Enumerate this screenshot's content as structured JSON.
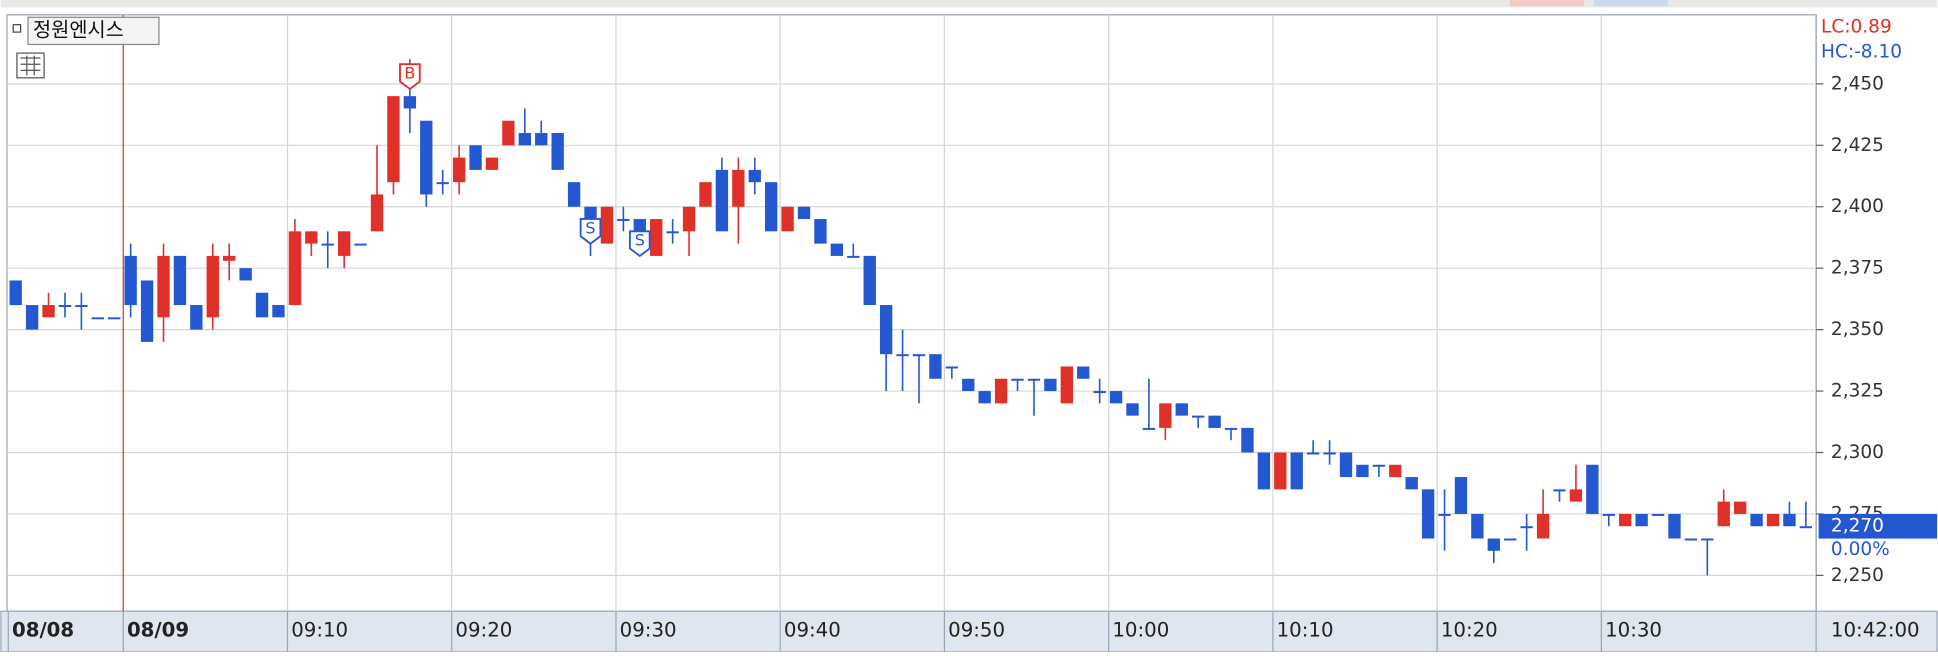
{
  "chart_data": {
    "type": "candlestick",
    "title": "정원엔시스",
    "legend_lc": "LC:0.89",
    "legend_hc": "HC:-8.10",
    "current_price": {
      "value": 2270,
      "label": "2,270"
    },
    "current_change": "0.00%",
    "current_time": "10:42:00",
    "up_color": "#e0302a",
    "down_color": "#2458d0",
    "categories": [
      "08/08",
      null,
      null,
      null,
      null,
      null,
      null,
      "08/09",
      null,
      null,
      null,
      null,
      null,
      null,
      null,
      null,
      null,
      "09:10",
      null,
      null,
      null,
      null,
      null,
      null,
      null,
      null,
      null,
      "09:20",
      null,
      null,
      null,
      null,
      null,
      null,
      null,
      null,
      null,
      "09:30",
      null,
      null,
      null,
      null,
      null,
      null,
      null,
      null,
      null,
      "09:40",
      null,
      null,
      null,
      null,
      null,
      null,
      null,
      null,
      null,
      "09:50",
      null,
      null,
      null,
      null,
      null,
      null,
      null,
      null,
      null,
      "10:00",
      null,
      null,
      null,
      null,
      null,
      null,
      null,
      null,
      null,
      "10:10",
      null,
      null,
      null,
      null,
      null,
      null,
      null,
      null,
      null,
      "10:20",
      null,
      null,
      null,
      null,
      null,
      null,
      null,
      null,
      null,
      "10:30",
      null,
      null,
      null,
      null,
      null,
      null,
      null,
      null,
      null,
      null,
      null,
      null
    ],
    "open": [
      2370,
      2360,
      2355,
      2360,
      2360,
      2355,
      2355,
      2380,
      2370,
      2355,
      2380,
      2360,
      2355,
      2378,
      2375,
      2365,
      2360,
      2360,
      2385,
      2385,
      2380,
      2385,
      2390,
      2410,
      2445,
      2435,
      2410,
      2410,
      2425,
      2415,
      2425,
      2430,
      2430,
      2430,
      2410,
      2400,
      2385,
      2395,
      2395,
      2380,
      2390,
      2390,
      2400,
      2415,
      2400,
      2415,
      2410,
      2390,
      2400,
      2395,
      2385,
      2380,
      2380,
      2360,
      2340,
      2340,
      2340,
      2335,
      2330,
      2325,
      2320,
      2330,
      2330,
      2330,
      2320,
      2335,
      2325,
      2325,
      2320,
      2310,
      2310,
      2320,
      2315,
      2315,
      2310,
      2310,
      2300,
      2285,
      2300,
      2300,
      2300,
      2300,
      2295,
      2295,
      2290,
      2290,
      2285,
      2275,
      2290,
      2275,
      2265,
      2265,
      2270,
      2265,
      2285,
      2280,
      2295,
      2275,
      2270,
      2275,
      2275,
      2275,
      2265,
      2265,
      2270,
      2275,
      2275,
      2270,
      2275,
      2270
    ],
    "high": [
      2370,
      2360,
      2365,
      2365,
      2365,
      2355,
      2355,
      2385,
      2370,
      2385,
      2380,
      2360,
      2385,
      2385,
      2375,
      2365,
      2360,
      2395,
      2390,
      2390,
      2390,
      2385,
      2425,
      2445,
      2460,
      2435,
      2415,
      2425,
      2425,
      2420,
      2435,
      2440,
      2435,
      2430,
      2410,
      2400,
      2400,
      2400,
      2395,
      2395,
      2395,
      2400,
      2410,
      2420,
      2420,
      2420,
      2410,
      2400,
      2400,
      2395,
      2385,
      2385,
      2380,
      2360,
      2350,
      2340,
      2340,
      2335,
      2330,
      2325,
      2330,
      2330,
      2330,
      2330,
      2335,
      2335,
      2330,
      2325,
      2320,
      2330,
      2320,
      2320,
      2315,
      2315,
      2310,
      2310,
      2300,
      2300,
      2300,
      2305,
      2305,
      2300,
      2295,
      2295,
      2295,
      2290,
      2285,
      2285,
      2290,
      2275,
      2265,
      2265,
      2275,
      2285,
      2285,
      2295,
      2295,
      2275,
      2275,
      2275,
      2275,
      2275,
      2265,
      2265,
      2285,
      2280,
      2275,
      2275,
      2280,
      2280
    ],
    "low": [
      2360,
      2350,
      2355,
      2355,
      2350,
      2355,
      2355,
      2355,
      2345,
      2345,
      2360,
      2350,
      2350,
      2370,
      2370,
      2355,
      2355,
      2360,
      2380,
      2375,
      2375,
      2385,
      2390,
      2405,
      2430,
      2400,
      2405,
      2405,
      2415,
      2415,
      2425,
      2425,
      2425,
      2415,
      2400,
      2380,
      2385,
      2390,
      2380,
      2380,
      2385,
      2380,
      2400,
      2390,
      2385,
      2405,
      2390,
      2390,
      2395,
      2385,
      2380,
      2380,
      2360,
      2325,
      2325,
      2320,
      2330,
      2330,
      2325,
      2320,
      2320,
      2325,
      2315,
      2325,
      2320,
      2330,
      2320,
      2320,
      2315,
      2310,
      2305,
      2315,
      2310,
      2310,
      2305,
      2300,
      2285,
      2285,
      2285,
      2300,
      2295,
      2290,
      2290,
      2290,
      2290,
      2285,
      2265,
      2260,
      2275,
      2265,
      2255,
      2265,
      2260,
      2265,
      2280,
      2280,
      2275,
      2270,
      2270,
      2270,
      2275,
      2265,
      2265,
      2250,
      2270,
      2275,
      2270,
      2270,
      2270,
      2270
    ],
    "close": [
      2360,
      2350,
      2360,
      2360,
      2360,
      2355,
      2355,
      2360,
      2345,
      2380,
      2360,
      2350,
      2380,
      2380,
      2370,
      2355,
      2355,
      2390,
      2390,
      2385,
      2390,
      2385,
      2405,
      2445,
      2440,
      2405,
      2410,
      2420,
      2415,
      2420,
      2435,
      2425,
      2425,
      2415,
      2400,
      2390,
      2400,
      2395,
      2385,
      2395,
      2390,
      2400,
      2410,
      2390,
      2415,
      2410,
      2390,
      2400,
      2395,
      2385,
      2380,
      2380,
      2360,
      2340,
      2340,
      2340,
      2330,
      2335,
      2325,
      2320,
      2330,
      2330,
      2330,
      2325,
      2335,
      2330,
      2325,
      2320,
      2315,
      2310,
      2320,
      2315,
      2315,
      2310,
      2310,
      2300,
      2285,
      2300,
      2285,
      2300,
      2300,
      2290,
      2290,
      2295,
      2295,
      2285,
      2265,
      2275,
      2275,
      2265,
      2260,
      2265,
      2270,
      2275,
      2285,
      2285,
      2275,
      2275,
      2275,
      2270,
      2275,
      2265,
      2265,
      2265,
      2280,
      2280,
      2270,
      2275,
      2270,
      2270
    ],
    "signals": [
      {
        "label": "B",
        "candle": 24
      },
      {
        "label": "S",
        "candle": 35
      },
      {
        "label": "S",
        "candle": 38
      }
    ],
    "ylim": [
      2235.4,
      2478.1
    ],
    "yticks": [
      {
        "value": 2250,
        "label": "2,250"
      },
      {
        "value": 2275,
        "label": "2,275"
      },
      {
        "value": 2300,
        "label": "2,300"
      },
      {
        "value": 2325,
        "label": "2,325"
      },
      {
        "value": 2350,
        "label": "2,350"
      },
      {
        "value": 2375,
        "label": "2,375"
      },
      {
        "value": 2400,
        "label": "2,400"
      },
      {
        "value": 2425,
        "label": "2,425"
      },
      {
        "value": 2450,
        "label": "2,450"
      }
    ],
    "grid": true
  }
}
